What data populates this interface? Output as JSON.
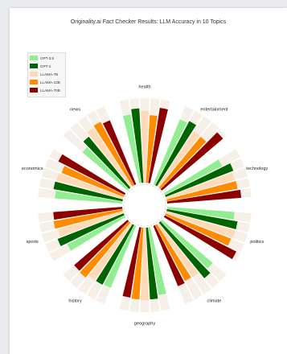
{
  "chart_data": {
    "type": "bar",
    "layout": "radial",
    "title": "Originality.ai Fact Checker Results: LLM Accuracy in 10 Topics",
    "categories": [
      "health",
      "entertainment",
      "technology",
      "politics",
      "climate",
      "geography",
      "history",
      "sports",
      "economics",
      "news"
    ],
    "series": [
      {
        "name": "GPT-3.5",
        "color": "#90ee90",
        "values": [
          0.82,
          0.83,
          0.76,
          0.8,
          0.79,
          0.81,
          0.79,
          0.76,
          0.8,
          0.7
        ]
      },
      {
        "name": "GPT-4",
        "color": "#006400",
        "values": [
          0.88,
          0.86,
          0.86,
          0.85,
          0.85,
          0.85,
          0.8,
          0.84,
          0.83,
          0.78
        ]
      },
      {
        "name": "LLAMA-7B",
        "color": "#ffdab9",
        "values": [
          0.85,
          0.79,
          0.84,
          0.85,
          0.76,
          0.86,
          0.8,
          0.8,
          0.82,
          0.83
        ]
      },
      {
        "name": "LLAMA-13B",
        "color": "#ff8c00",
        "values": [
          0.8,
          0.78,
          0.85,
          0.83,
          0.75,
          0.85,
          0.84,
          0.83,
          0.79,
          0.85
        ]
      },
      {
        "name": "LLAMA-70B",
        "color": "#8b0000",
        "values": [
          0.9,
          0.95,
          0.88,
          0.95,
          0.77,
          0.84,
          0.83,
          0.82,
          0.88,
          0.82
        ]
      }
    ]
  }
}
